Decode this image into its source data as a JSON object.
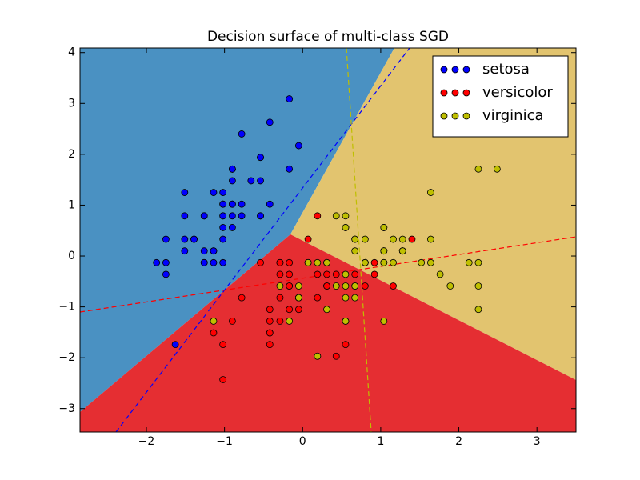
{
  "chart_data": {
    "type": "scatter",
    "title": "Decision surface of multi-class SGD",
    "xlim": [
      -2.85,
      3.5
    ],
    "ylim": [
      -3.46,
      4.09
    ],
    "xticks": [
      {
        "value": -2,
        "label": "−2"
      },
      {
        "value": -1,
        "label": "−1"
      },
      0,
      1,
      2,
      3
    ],
    "yticks": [
      {
        "value": -3,
        "label": "−3"
      },
      {
        "value": -2,
        "label": "−2"
      },
      {
        "value": -1,
        "label": "−1"
      },
      0,
      1,
      2,
      3,
      4
    ],
    "legend": "upper right",
    "series": [
      {
        "name": "setosa",
        "color": "#0000ff",
        "x": [
          -0.9,
          -1.14,
          -1.39,
          -1.51,
          -1.02,
          -0.54,
          -1.51,
          -1.02,
          -1.75,
          -1.14,
          -0.54,
          -1.26,
          -1.26,
          -1.87,
          -0.05,
          -0.17,
          -0.54,
          -0.9,
          -0.17,
          -0.9,
          -0.54,
          -0.9,
          -1.51,
          -0.9,
          -1.26,
          -1.02,
          -1.02,
          -0.78,
          -0.78,
          -1.39,
          -1.26,
          -0.54,
          -0.78,
          -0.42,
          -1.14,
          -1.02,
          -0.42,
          -1.14,
          -1.75,
          -0.9,
          -1.02,
          -1.63,
          -1.75,
          -1.02,
          -0.9,
          -1.26,
          -0.9,
          -1.51,
          -0.66,
          -1.02
        ],
        "values": [
          1.02,
          -0.13,
          0.33,
          0.1,
          1.25,
          1.94,
          0.79,
          0.79,
          -0.36,
          0.1,
          1.48,
          0.79,
          -0.13,
          -0.13,
          2.17,
          3.09,
          1.94,
          1.02,
          1.71,
          1.71,
          0.79,
          1.48,
          1.25,
          0.56,
          0.79,
          -0.13,
          0.79,
          1.02,
          0.79,
          0.33,
          0.1,
          0.79,
          2.4,
          2.63,
          0.1,
          0.33,
          1.02,
          1.25,
          -0.13,
          0.79,
          1.02,
          -1.74,
          0.33,
          1.02,
          1.71,
          -0.13,
          1.71,
          0.33,
          1.48,
          0.56
        ]
      },
      {
        "name": "versicolor",
        "color": "#ff0000",
        "x": [
          1.4,
          0.67,
          1.28,
          -0.42,
          0.8,
          -0.17,
          0.55,
          -1.14,
          0.92,
          -0.78,
          -1.02,
          0.07,
          0.19,
          0.31,
          -0.29,
          1.04,
          -0.29,
          -0.05,
          0.43,
          -0.29,
          0.07,
          0.31,
          0.55,
          0.31,
          0.67,
          0.92,
          1.16,
          1.04,
          0.19,
          -0.17,
          -0.42,
          -0.42,
          -0.05,
          0.19,
          -0.54,
          0.19,
          1.04,
          0.55,
          -0.29,
          -0.42,
          -0.42,
          0.31,
          -0.05,
          -1.02,
          -0.29,
          -0.17,
          -0.17,
          0.43,
          -0.9,
          -0.17
        ],
        "values": [
          0.33,
          0.33,
          0.1,
          -1.74,
          -0.59,
          -0.59,
          0.56,
          -1.51,
          -0.36,
          -0.82,
          -2.43,
          -0.13,
          -1.97,
          -0.36,
          -0.36,
          0.1,
          -0.13,
          -0.82,
          -1.97,
          -1.28,
          0.33,
          -0.59,
          -1.28,
          -0.59,
          -0.36,
          -0.13,
          -0.59,
          -0.13,
          -0.36,
          -1.05,
          -1.51,
          -1.51,
          -0.82,
          -0.82,
          -0.13,
          0.79,
          0.1,
          -1.74,
          -0.13,
          -1.28,
          -1.05,
          -0.13,
          -1.05,
          -1.74,
          -0.82,
          -0.13,
          -0.36,
          -0.36,
          -1.28,
          -0.59
        ]
      },
      {
        "name": "virginica",
        "color": "#bfbf00",
        "x": [
          0.55,
          -0.05,
          1.52,
          0.55,
          0.8,
          2.13,
          -1.14,
          1.76,
          1.04,
          1.64,
          0.8,
          0.67,
          1.16,
          -0.17,
          -0.05,
          0.67,
          0.8,
          2.25,
          2.25,
          0.19,
          1.28,
          -0.29,
          2.25,
          0.55,
          1.04,
          1.64,
          0.43,
          0.31,
          0.67,
          1.64,
          1.89,
          2.49,
          0.67,
          0.55,
          0.31,
          2.25,
          0.55,
          0.67,
          0.19,
          1.28,
          1.04,
          1.28,
          -0.05,
          1.16,
          1.04,
          1.04,
          0.55,
          0.8,
          0.43,
          0.07
        ],
        "values": [
          0.56,
          -0.82,
          -0.13,
          -0.36,
          -0.13,
          -0.13,
          -1.28,
          -0.36,
          -1.28,
          1.25,
          0.33,
          -0.82,
          -0.13,
          -1.28,
          -0.59,
          0.33,
          -0.13,
          1.71,
          -1.05,
          -1.97,
          0.33,
          -0.59,
          -0.59,
          -0.82,
          0.56,
          0.33,
          -0.59,
          -0.13,
          -0.59,
          -0.13,
          -0.59,
          1.71,
          -0.59,
          -0.59,
          -1.05,
          -0.13,
          0.79,
          0.1,
          -0.13,
          0.1,
          0.1,
          0.1,
          -0.82,
          0.33,
          0.56,
          -0.13,
          -1.28,
          -0.13,
          0.79,
          -0.13
        ]
      }
    ]
  }
}
